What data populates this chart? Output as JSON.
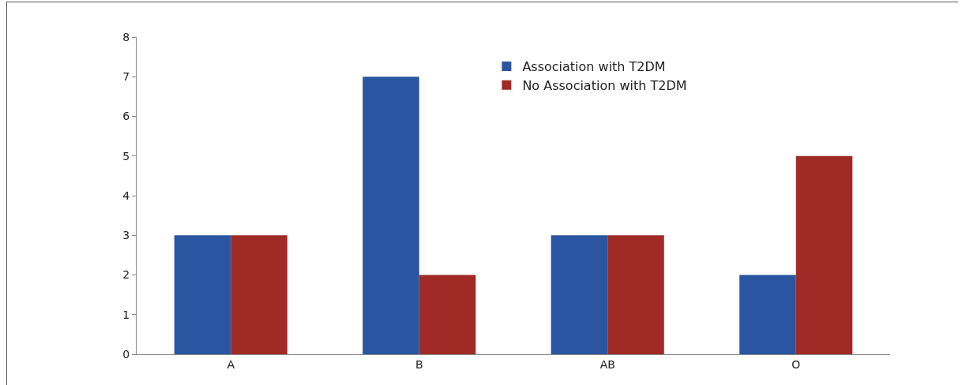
{
  "chart_data": {
    "type": "bar",
    "categories": [
      "A",
      "B",
      "AB",
      "O"
    ],
    "series": [
      {
        "name": "Association with T2DM",
        "color": "#2a55a0",
        "values": [
          3,
          7,
          3,
          2
        ]
      },
      {
        "name": "No Association with T2DM",
        "color": "#a02a25",
        "values": [
          3,
          2,
          3,
          5
        ]
      }
    ],
    "ylim": [
      0,
      8
    ],
    "yticks": [
      0,
      1,
      2,
      3,
      4,
      5,
      6,
      7,
      8
    ],
    "grid": false,
    "legend": "top right"
  }
}
